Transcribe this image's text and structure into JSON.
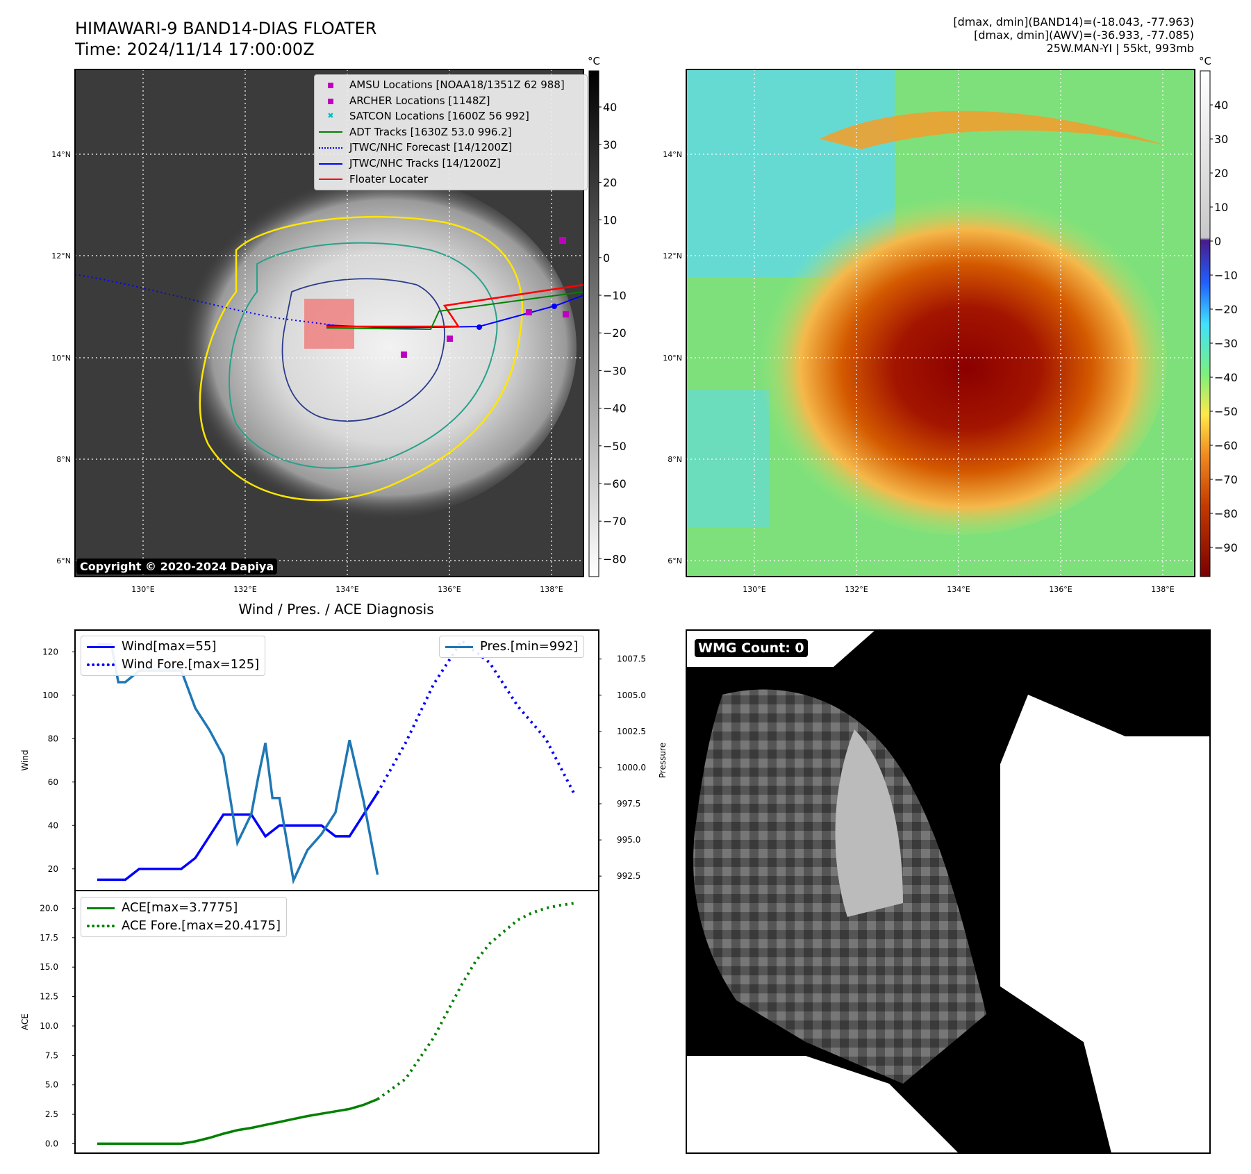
{
  "header": {
    "title_line1": "HIMAWARI-9 BAND14-DIAS FLOATER",
    "title_line2": "Time: 2024/11/14 17:00:00Z",
    "stats_line1": "[dmax, dmin](BAND14)=(-18.043, -77.963)",
    "stats_line2": "[dmax, dmin](AWV)=(-36.933, -77.085)",
    "stats_line3": "25W.MAN-YI | 55kt, 993mb"
  },
  "map_panel": {
    "copyright": "Copyright © 2020-2024 Dapiya",
    "lat_labels": [
      "14°N",
      "12°N",
      "10°N",
      "8°N",
      "6°N"
    ],
    "lon_labels": [
      "130°E",
      "132°E",
      "134°E",
      "136°E",
      "138°E"
    ],
    "legend": [
      {
        "label": "AMSU Locations [NOAA18/1351Z 62 988]",
        "marker": "square",
        "color": "#c000c0"
      },
      {
        "label": "ARCHER Locations [1148Z]",
        "marker": "square",
        "color": "#c000c0"
      },
      {
        "label": "SATCON Locations [1600Z 56 992]",
        "marker": "x",
        "color": "#00bfbf"
      },
      {
        "label": "ADT Tracks [1630Z 53.0 996.2]",
        "marker": "line",
        "color": "#008000"
      },
      {
        "label": "JTWC/NHC Forecast [14/1200Z]",
        "marker": "dotted",
        "color": "#0000ff"
      },
      {
        "label": "JTWC/NHC Tracks [14/1200Z]",
        "marker": "line-dot",
        "color": "#0000ff"
      },
      {
        "label": "Floater Locater",
        "marker": "line",
        "color": "#ff0000"
      }
    ],
    "colorbar_unit": "°C",
    "colorbar_ticks": [
      "40",
      "30",
      "20",
      "10",
      "0",
      "−10",
      "−20",
      "−30",
      "−40",
      "−50",
      "−60",
      "−70",
      "−80"
    ]
  },
  "awv_panel": {
    "colorbar_unit": "°C",
    "colorbar_ticks": [
      "40",
      "30",
      "20",
      "10",
      "0",
      "−10",
      "−20",
      "−30",
      "−40",
      "−50",
      "−60",
      "−70",
      "−80",
      "−90"
    ],
    "lat_labels": [
      "14°N",
      "12°N",
      "10°N",
      "8°N",
      "6°N"
    ],
    "lon_labels": [
      "130°E",
      "132°E",
      "134°E",
      "136°E",
      "138°E"
    ]
  },
  "wmg_panel": {
    "badge": "WMG Count: 0"
  },
  "chart_data": [
    {
      "type": "line",
      "title": "Wind / Pres. / ACE Diagnosis",
      "xlabel": "",
      "ylabel": "Wind",
      "y2label": "Pressure",
      "ylim": [
        10,
        130
      ],
      "y2lim": [
        991.5,
        1009.5
      ],
      "yticks": [
        20,
        40,
        60,
        80,
        100,
        120
      ],
      "y2ticks": [
        "992.5",
        "995.0",
        "997.5",
        "1000.0",
        "1002.5",
        "1005.0",
        "1007.5"
      ],
      "legend_left": [
        "Wind[max=55]",
        "Wind Fore.[max=125]"
      ],
      "legend_right": [
        "Pres.[min=992]"
      ],
      "series": [
        {
          "name": "Wind",
          "style": "solid",
          "color": "#0000ff",
          "x": [
            0,
            2,
            3,
            4,
            5,
            6,
            7,
            8,
            9,
            10,
            11,
            12,
            13,
            14,
            15,
            16,
            17,
            18,
            19,
            20
          ],
          "values": [
            15,
            15,
            20,
            20,
            20,
            20,
            25,
            35,
            45,
            45,
            45,
            35,
            40,
            40,
            40,
            40,
            35,
            35,
            45,
            55
          ]
        },
        {
          "name": "Wind Fore.",
          "style": "dotted",
          "color": "#0000ff",
          "x": [
            20,
            22,
            24,
            26,
            28,
            30,
            32,
            34
          ],
          "values": [
            55,
            78,
            105,
            125,
            115,
            95,
            80,
            55
          ]
        },
        {
          "name": "Pres.",
          "style": "solid",
          "color": "#1f77b4",
          "axis": "right",
          "x": [
            0,
            1,
            1.5,
            2,
            3,
            4,
            5,
            6,
            7,
            8,
            9,
            10,
            11,
            11.5,
            12,
            12.5,
            13,
            14,
            15,
            16,
            17,
            18,
            19,
            20
          ],
          "values": [
            1008.5,
            1008.5,
            1005.9,
            1005.9,
            1006.7,
            1006.7,
            1006.7,
            1006.7,
            1004.1,
            1002.6,
            1000.8,
            994.8,
            996.8,
            999.4,
            1001.7,
            997.9,
            997.9,
            992.2,
            994.3,
            995.4,
            996.9,
            1001.9,
            997.7,
            992.6
          ]
        }
      ]
    },
    {
      "type": "line",
      "title": "",
      "xlabel": "",
      "ylabel": "ACE",
      "ylim": [
        -0.8,
        21.5
      ],
      "yticks": [
        "0.0",
        "2.5",
        "5.0",
        "7.5",
        "10.0",
        "12.5",
        "15.0",
        "17.5",
        "20.0"
      ],
      "legend": [
        "ACE[max=3.7775]",
        "ACE Fore.[max=20.4175]"
      ],
      "series": [
        {
          "name": "ACE",
          "style": "solid",
          "color": "#008000",
          "x": [
            0,
            2,
            4,
            6,
            7,
            8,
            9,
            10,
            11,
            12,
            13,
            14,
            15,
            16,
            17,
            18,
            19,
            20
          ],
          "values": [
            0,
            0,
            0,
            0,
            0.2,
            0.5,
            0.85,
            1.15,
            1.35,
            1.6,
            1.85,
            2.1,
            2.35,
            2.55,
            2.75,
            2.95,
            3.3,
            3.7775
          ]
        },
        {
          "name": "ACE Fore.",
          "style": "dotted",
          "color": "#008000",
          "x": [
            20,
            22,
            24,
            26,
            27,
            28,
            29,
            30,
            31,
            32,
            33,
            34
          ],
          "values": [
            3.7775,
            5.5,
            9.0,
            13.5,
            15.5,
            17.0,
            18.0,
            19.0,
            19.6,
            20.0,
            20.25,
            20.4175
          ]
        }
      ]
    }
  ]
}
